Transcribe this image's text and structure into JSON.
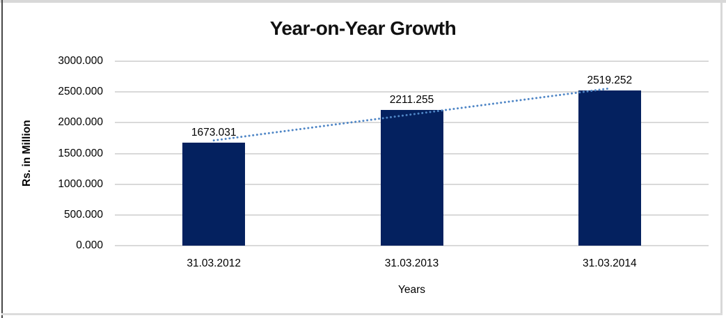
{
  "chart_data": {
    "type": "bar",
    "title": "Year-on-Year Growth",
    "categories": [
      "31.03.2012",
      "31.03.2013",
      "31.03.2014"
    ],
    "values": [
      1673.031,
      2211.255,
      2519.252
    ],
    "data_labels": [
      "1673.031",
      "2211.255",
      "2519.252"
    ],
    "xlabel": "Years",
    "ylabel": "Rs. in Million",
    "ylim": [
      0,
      3000
    ],
    "ytick_step": 500,
    "ytick_labels": [
      "0.000",
      "500.000",
      "1000.000",
      "1500.000",
      "2000.000",
      "2500.000",
      "3000.000"
    ],
    "grid": true,
    "legend": "none",
    "bar_color": "#04215f",
    "trendline": {
      "kind": "linear",
      "style": "dotted",
      "color": "#4f86c6"
    },
    "gridline_color": "#d9d9d9",
    "frame_colors": {
      "top": "#d8d8d8",
      "left": "#474747",
      "right": "#d8d8d8",
      "bottom": "#dcdcdc"
    }
  }
}
